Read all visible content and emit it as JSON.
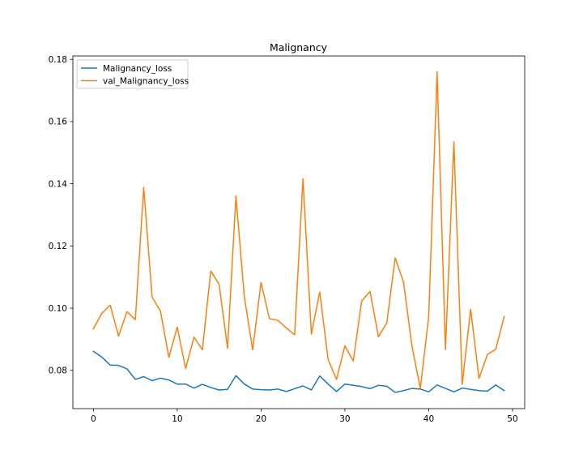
{
  "chart_data": {
    "type": "line",
    "title": "Malignancy",
    "xlabel": "",
    "ylabel": "",
    "xlim": [
      -2.45,
      51.45
    ],
    "ylim": [
      0.0677,
      0.1811
    ],
    "xticks": [
      0,
      10,
      20,
      30,
      40,
      50
    ],
    "yticks": [
      0.08,
      0.1,
      0.12,
      0.14,
      0.16,
      0.18
    ],
    "ytick_labels": [
      "0.08",
      "0.10",
      "0.12",
      "0.14",
      "0.16",
      "0.18"
    ],
    "xtick_labels": [
      "0",
      "10",
      "20",
      "30",
      "40",
      "50"
    ],
    "grid": false,
    "legend_position": "top-left",
    "x": [
      0,
      1,
      2,
      3,
      4,
      5,
      6,
      7,
      8,
      9,
      10,
      11,
      12,
      13,
      14,
      15,
      16,
      17,
      18,
      19,
      20,
      21,
      22,
      23,
      24,
      25,
      26,
      27,
      28,
      29,
      30,
      31,
      32,
      33,
      34,
      35,
      36,
      37,
      38,
      39,
      40,
      41,
      42,
      43,
      44,
      45,
      46,
      47,
      48,
      49
    ],
    "series": [
      {
        "name": "Malignancy_loss",
        "color": "#1f77b4",
        "values": [
          0.0861,
          0.0843,
          0.0817,
          0.0816,
          0.0805,
          0.0771,
          0.078,
          0.0767,
          0.0775,
          0.0769,
          0.0756,
          0.0756,
          0.0743,
          0.0755,
          0.0745,
          0.0737,
          0.0739,
          0.0783,
          0.0756,
          0.074,
          0.0738,
          0.0737,
          0.074,
          0.0732,
          0.0741,
          0.075,
          0.0737,
          0.0782,
          0.0756,
          0.0732,
          0.0756,
          0.0752,
          0.0748,
          0.0741,
          0.0752,
          0.0749,
          0.0729,
          0.0735,
          0.0742,
          0.074,
          0.0731,
          0.0753,
          0.0742,
          0.0731,
          0.0743,
          0.0739,
          0.0735,
          0.0733,
          0.0753,
          0.0735
        ]
      },
      {
        "name": "val_Malignancy_loss",
        "color": "#ff7f0e",
        "values": [
          0.0934,
          0.0983,
          0.101,
          0.091,
          0.0989,
          0.0963,
          0.1388,
          0.1036,
          0.099,
          0.0842,
          0.0939,
          0.0806,
          0.0907,
          0.0866,
          0.112,
          0.1076,
          0.0871,
          0.1361,
          0.1037,
          0.0866,
          0.1083,
          0.0966,
          0.0961,
          0.0937,
          0.0914,
          0.1416,
          0.0917,
          0.1052,
          0.0835,
          0.0771,
          0.0879,
          0.083,
          0.1023,
          0.1054,
          0.0908,
          0.0953,
          0.1162,
          0.1083,
          0.0878,
          0.0742,
          0.0973,
          0.176,
          0.0867,
          0.1535,
          0.0755,
          0.0997,
          0.0774,
          0.0851,
          0.0868,
          0.0973
        ]
      }
    ]
  }
}
